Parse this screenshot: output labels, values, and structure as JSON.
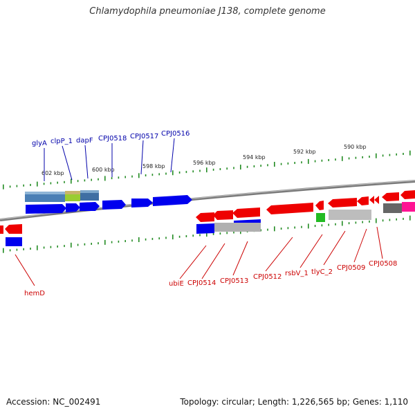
{
  "title": "Chlamydophila pneumoniae J138, complete genome",
  "footer": {
    "accession": "Accession: NC_002491",
    "summary": "Topology: circular; Length: 1,226,565 bp; Genes: 1,110"
  },
  "colors": {
    "forward": "#0000ee",
    "reverse": "#ee0000",
    "label_forward": "#0000aa",
    "label_reverse": "#cc0000",
    "backbone": "#888888",
    "tick": "#228b22"
  },
  "scale_labels": [
    "602 kbp",
    "600 kbp",
    "598 kbp",
    "596 kbp",
    "594 kbp",
    "592 kbp",
    "590 kbp"
  ],
  "forward_labels": [
    "glyA",
    "clpP_1",
    "dapF",
    "CPJ0518",
    "CPJ0517",
    "CPJ0516"
  ],
  "reverse_labels": [
    "hemD",
    "ubiE",
    "CPJ0514",
    "CPJ0513",
    "CPJ0512",
    "rsbV_1",
    "tlyC_2",
    "CPJ0509",
    "CPJ0508"
  ]
}
